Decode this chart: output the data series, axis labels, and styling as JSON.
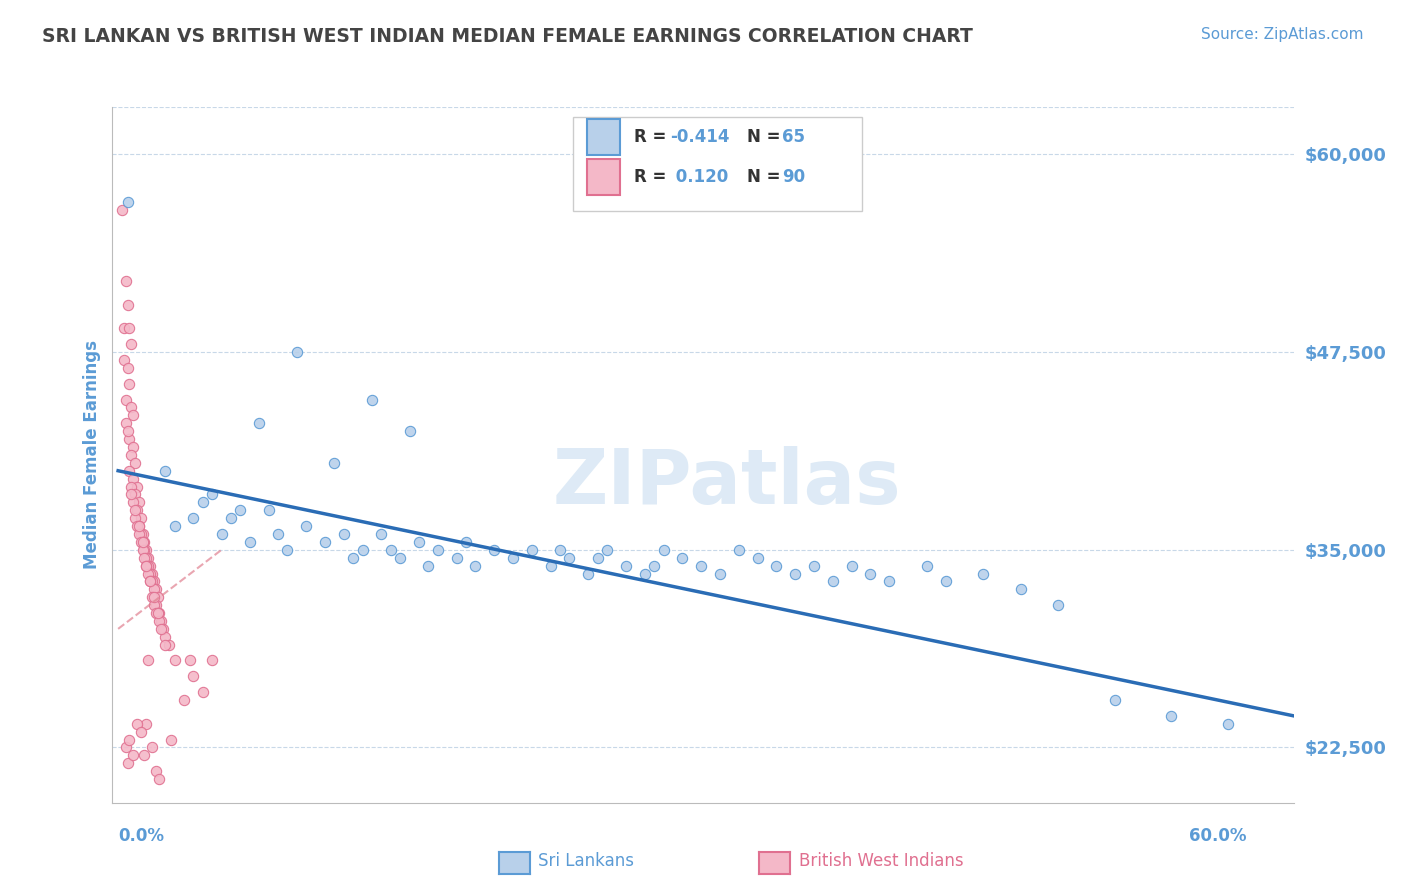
{
  "title": "SRI LANKAN VS BRITISH WEST INDIAN MEDIAN FEMALE EARNINGS CORRELATION CHART",
  "source": "Source: ZipAtlas.com",
  "ylabel": "Median Female Earnings",
  "ytick_labels": [
    "$22,500",
    "$35,000",
    "$47,500",
    "$60,000"
  ],
  "ytick_values": [
    22500,
    35000,
    47500,
    60000
  ],
  "ymin": 19000,
  "ymax": 63000,
  "xmin": -0.003,
  "xmax": 0.625,
  "blue_color": "#b8d0ea",
  "blue_edge": "#5b9bd5",
  "pink_color": "#f4b8c8",
  "pink_edge": "#e07090",
  "trend_blue_color": "#2a6cb5",
  "trend_pink_color": "#e08090",
  "title_color": "#444444",
  "source_color": "#5b9bd5",
  "axis_label_color": "#5b9bd5",
  "ytick_color": "#5b9bd5",
  "xtick_color": "#5b9bd5",
  "grid_color": "#c8d8e8",
  "watermark": "ZIPatlas",
  "watermark_color": "#c8ddf0",
  "legend_box_color": "#dddddd",
  "blue_scatter": [
    [
      0.005,
      57000
    ],
    [
      0.095,
      47500
    ],
    [
      0.135,
      44500
    ],
    [
      0.075,
      43000
    ],
    [
      0.115,
      40500
    ],
    [
      0.155,
      42500
    ],
    [
      0.025,
      40000
    ],
    [
      0.045,
      38000
    ],
    [
      0.065,
      37500
    ],
    [
      0.03,
      36500
    ],
    [
      0.04,
      37000
    ],
    [
      0.05,
      38500
    ],
    [
      0.055,
      36000
    ],
    [
      0.06,
      37000
    ],
    [
      0.07,
      35500
    ],
    [
      0.08,
      37500
    ],
    [
      0.085,
      36000
    ],
    [
      0.09,
      35000
    ],
    [
      0.1,
      36500
    ],
    [
      0.11,
      35500
    ],
    [
      0.12,
      36000
    ],
    [
      0.125,
      34500
    ],
    [
      0.13,
      35000
    ],
    [
      0.14,
      36000
    ],
    [
      0.145,
      35000
    ],
    [
      0.15,
      34500
    ],
    [
      0.16,
      35500
    ],
    [
      0.165,
      34000
    ],
    [
      0.17,
      35000
    ],
    [
      0.18,
      34500
    ],
    [
      0.185,
      35500
    ],
    [
      0.19,
      34000
    ],
    [
      0.2,
      35000
    ],
    [
      0.21,
      34500
    ],
    [
      0.22,
      35000
    ],
    [
      0.23,
      34000
    ],
    [
      0.235,
      35000
    ],
    [
      0.24,
      34500
    ],
    [
      0.25,
      33500
    ],
    [
      0.255,
      34500
    ],
    [
      0.26,
      35000
    ],
    [
      0.27,
      34000
    ],
    [
      0.28,
      33500
    ],
    [
      0.285,
      34000
    ],
    [
      0.29,
      35000
    ],
    [
      0.3,
      34500
    ],
    [
      0.31,
      34000
    ],
    [
      0.32,
      33500
    ],
    [
      0.33,
      35000
    ],
    [
      0.34,
      34500
    ],
    [
      0.35,
      34000
    ],
    [
      0.36,
      33500
    ],
    [
      0.37,
      34000
    ],
    [
      0.38,
      33000
    ],
    [
      0.39,
      34000
    ],
    [
      0.4,
      33500
    ],
    [
      0.41,
      33000
    ],
    [
      0.43,
      34000
    ],
    [
      0.44,
      33000
    ],
    [
      0.46,
      33500
    ],
    [
      0.48,
      32500
    ],
    [
      0.5,
      31500
    ],
    [
      0.53,
      25500
    ],
    [
      0.56,
      24500
    ],
    [
      0.59,
      24000
    ]
  ],
  "pink_scatter": [
    [
      0.002,
      56500
    ],
    [
      0.004,
      52000
    ],
    [
      0.003,
      49000
    ],
    [
      0.005,
      50500
    ],
    [
      0.006,
      49000
    ],
    [
      0.007,
      48000
    ],
    [
      0.003,
      47000
    ],
    [
      0.005,
      46500
    ],
    [
      0.004,
      44500
    ],
    [
      0.006,
      45500
    ],
    [
      0.007,
      44000
    ],
    [
      0.008,
      43500
    ],
    [
      0.004,
      43000
    ],
    [
      0.006,
      42000
    ],
    [
      0.008,
      41500
    ],
    [
      0.005,
      42500
    ],
    [
      0.007,
      41000
    ],
    [
      0.009,
      40500
    ],
    [
      0.006,
      40000
    ],
    [
      0.008,
      39500
    ],
    [
      0.01,
      39000
    ],
    [
      0.007,
      39000
    ],
    [
      0.009,
      38500
    ],
    [
      0.011,
      38000
    ],
    [
      0.008,
      38000
    ],
    [
      0.01,
      37500
    ],
    [
      0.012,
      37000
    ],
    [
      0.009,
      37000
    ],
    [
      0.011,
      36500
    ],
    [
      0.013,
      36000
    ],
    [
      0.01,
      36500
    ],
    [
      0.012,
      36000
    ],
    [
      0.014,
      35500
    ],
    [
      0.011,
      36000
    ],
    [
      0.013,
      35500
    ],
    [
      0.015,
      35000
    ],
    [
      0.012,
      35500
    ],
    [
      0.014,
      35000
    ],
    [
      0.016,
      34500
    ],
    [
      0.013,
      35000
    ],
    [
      0.015,
      34500
    ],
    [
      0.017,
      34000
    ],
    [
      0.014,
      34500
    ],
    [
      0.016,
      34000
    ],
    [
      0.018,
      33500
    ],
    [
      0.015,
      34000
    ],
    [
      0.017,
      33500
    ],
    [
      0.019,
      33000
    ],
    [
      0.016,
      33500
    ],
    [
      0.018,
      33000
    ],
    [
      0.02,
      32500
    ],
    [
      0.017,
      33000
    ],
    [
      0.019,
      32500
    ],
    [
      0.021,
      32000
    ],
    [
      0.018,
      32000
    ],
    [
      0.02,
      31500
    ],
    [
      0.022,
      31000
    ],
    [
      0.019,
      31500
    ],
    [
      0.021,
      31000
    ],
    [
      0.023,
      30500
    ],
    [
      0.02,
      31000
    ],
    [
      0.022,
      30500
    ],
    [
      0.024,
      30000
    ],
    [
      0.025,
      29500
    ],
    [
      0.027,
      29000
    ],
    [
      0.03,
      28000
    ],
    [
      0.015,
      24000
    ],
    [
      0.018,
      22500
    ],
    [
      0.02,
      21000
    ],
    [
      0.022,
      20500
    ],
    [
      0.028,
      23000
    ],
    [
      0.035,
      25500
    ],
    [
      0.04,
      27000
    ],
    [
      0.045,
      26000
    ],
    [
      0.038,
      28000
    ],
    [
      0.004,
      22500
    ],
    [
      0.005,
      21500
    ],
    [
      0.006,
      23000
    ],
    [
      0.008,
      22000
    ],
    [
      0.01,
      24000
    ],
    [
      0.012,
      23500
    ],
    [
      0.014,
      22000
    ],
    [
      0.016,
      28000
    ],
    [
      0.05,
      28000
    ],
    [
      0.007,
      38500
    ],
    [
      0.009,
      37500
    ],
    [
      0.011,
      36500
    ],
    [
      0.013,
      35500
    ],
    [
      0.015,
      34000
    ],
    [
      0.017,
      33000
    ],
    [
      0.019,
      32000
    ],
    [
      0.021,
      31000
    ],
    [
      0.023,
      30000
    ],
    [
      0.025,
      29000
    ]
  ],
  "blue_trend_x": [
    0.0,
    0.625
  ],
  "blue_trend_y": [
    40000,
    24500
  ],
  "pink_trend_x": [
    0.0,
    0.055
  ],
  "pink_trend_y": [
    30000,
    35000
  ]
}
